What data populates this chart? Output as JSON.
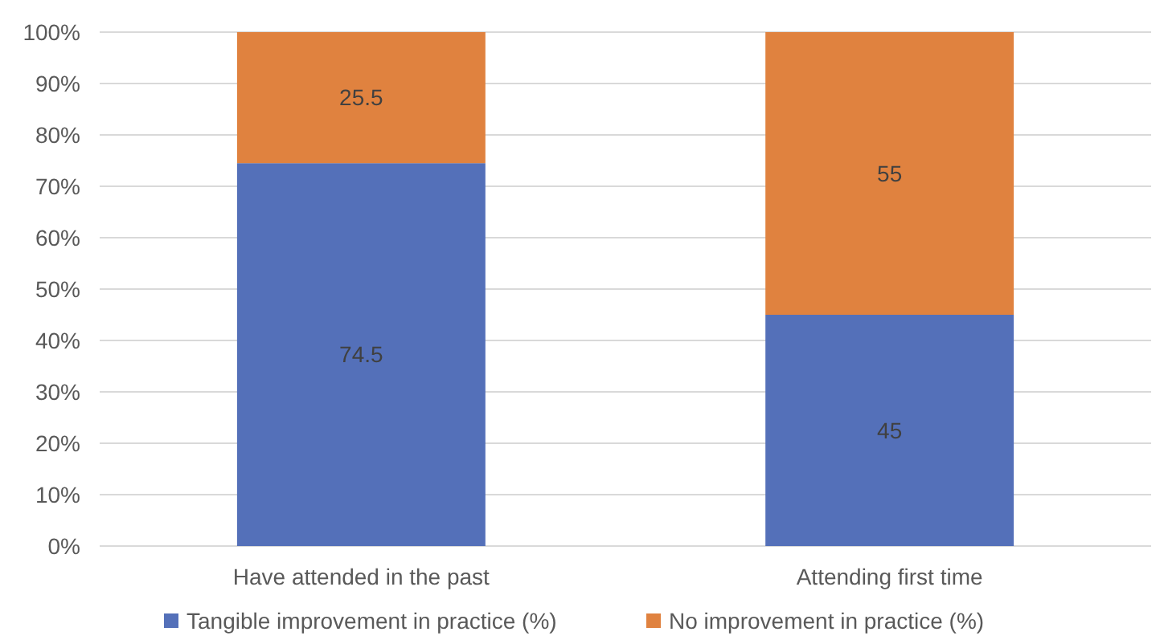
{
  "chart_data": {
    "type": "bar",
    "stacked": true,
    "categories": [
      "Have attended in the past",
      "Attending first time"
    ],
    "series": [
      {
        "name": "Tangible improvement in practice (%)",
        "color": "#5470b9",
        "values": [
          74.5,
          45
        ]
      },
      {
        "name": "No improvement in practice (%)",
        "color": "#e0823f",
        "values": [
          25.5,
          55
        ]
      }
    ],
    "ylim": [
      0,
      100
    ],
    "yticks": [
      {
        "value": 0,
        "label": "0%"
      },
      {
        "value": 10,
        "label": "10%"
      },
      {
        "value": 20,
        "label": "20%"
      },
      {
        "value": 30,
        "label": "30%"
      },
      {
        "value": 40,
        "label": "40%"
      },
      {
        "value": 50,
        "label": "50%"
      },
      {
        "value": 60,
        "label": "60%"
      },
      {
        "value": 70,
        "label": "70%"
      },
      {
        "value": 80,
        "label": "80%"
      },
      {
        "value": 90,
        "label": "90%"
      },
      {
        "value": 100,
        "label": "100%"
      }
    ],
    "grid": "y",
    "legend": "bottom",
    "data_labels": true
  }
}
